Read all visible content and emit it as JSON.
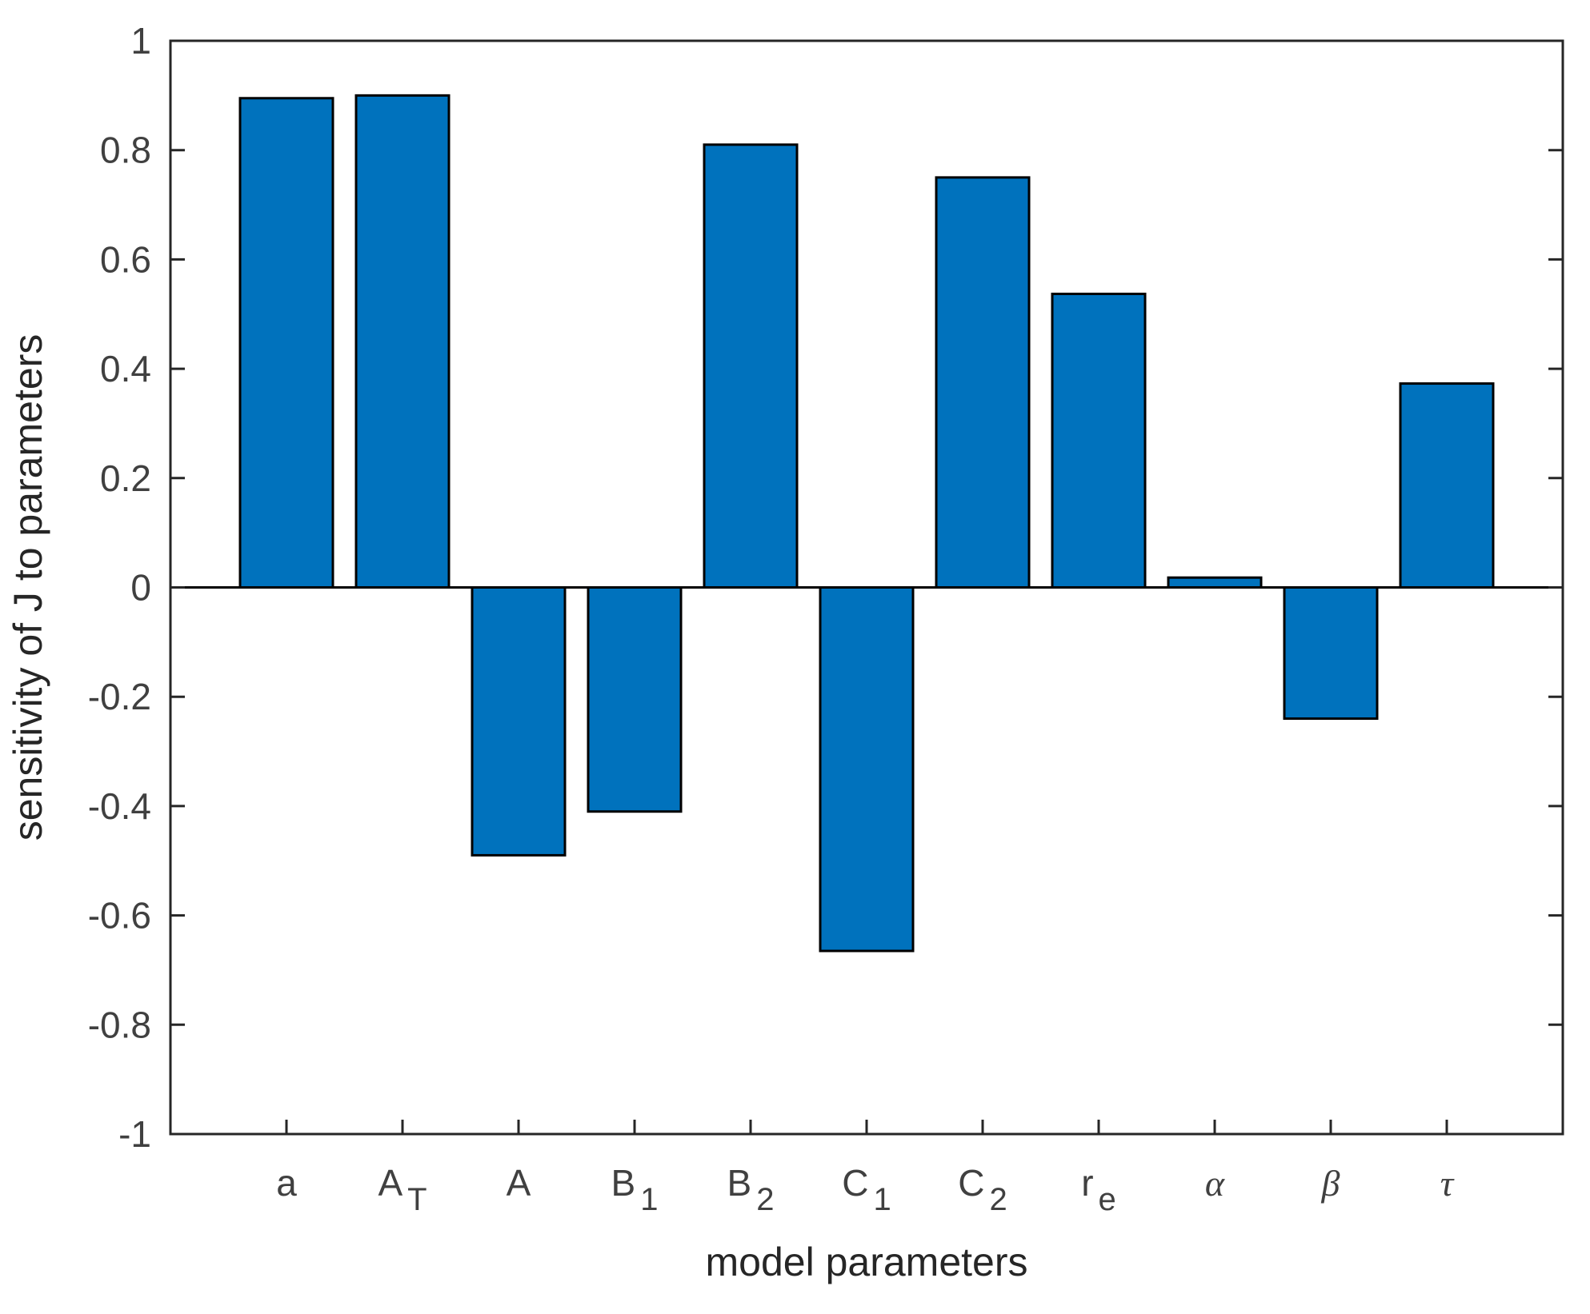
{
  "chart_data": {
    "type": "bar",
    "categories": [
      {
        "text": "a",
        "sub": ""
      },
      {
        "text": "A",
        "sub": "T"
      },
      {
        "text": "A",
        "sub": ""
      },
      {
        "text": "B",
        "sub": "1"
      },
      {
        "text": "B",
        "sub": "2"
      },
      {
        "text": "C",
        "sub": "1"
      },
      {
        "text": "C",
        "sub": "2"
      },
      {
        "text": "r",
        "sub": "e"
      },
      {
        "text": "α",
        "sub": "",
        "greek": true
      },
      {
        "text": "β",
        "sub": "",
        "greek": true
      },
      {
        "text": "τ",
        "sub": "",
        "greek": true
      }
    ],
    "values": [
      0.895,
      0.9,
      -0.49,
      -0.41,
      0.81,
      -0.665,
      0.75,
      0.537,
      0.018,
      -0.24,
      0.373
    ],
    "xlabel": "model parameters",
    "ylabel": "sensitivity of J to parameters",
    "ylim": [
      -1,
      1
    ],
    "yticks": [
      1,
      0.8,
      0.6,
      0.4,
      0.2,
      0,
      -0.2,
      -0.4,
      -0.6,
      -0.8,
      -1
    ],
    "ytick_labels": [
      "1",
      "0.8",
      "0.6",
      "0.4",
      "0.2",
      "0",
      "-0.2",
      "-0.4",
      "-0.6",
      "-0.8",
      "-1"
    ],
    "bar_color": "#0072BD",
    "edge_color": "#000000",
    "grid": false,
    "legend": "none"
  }
}
